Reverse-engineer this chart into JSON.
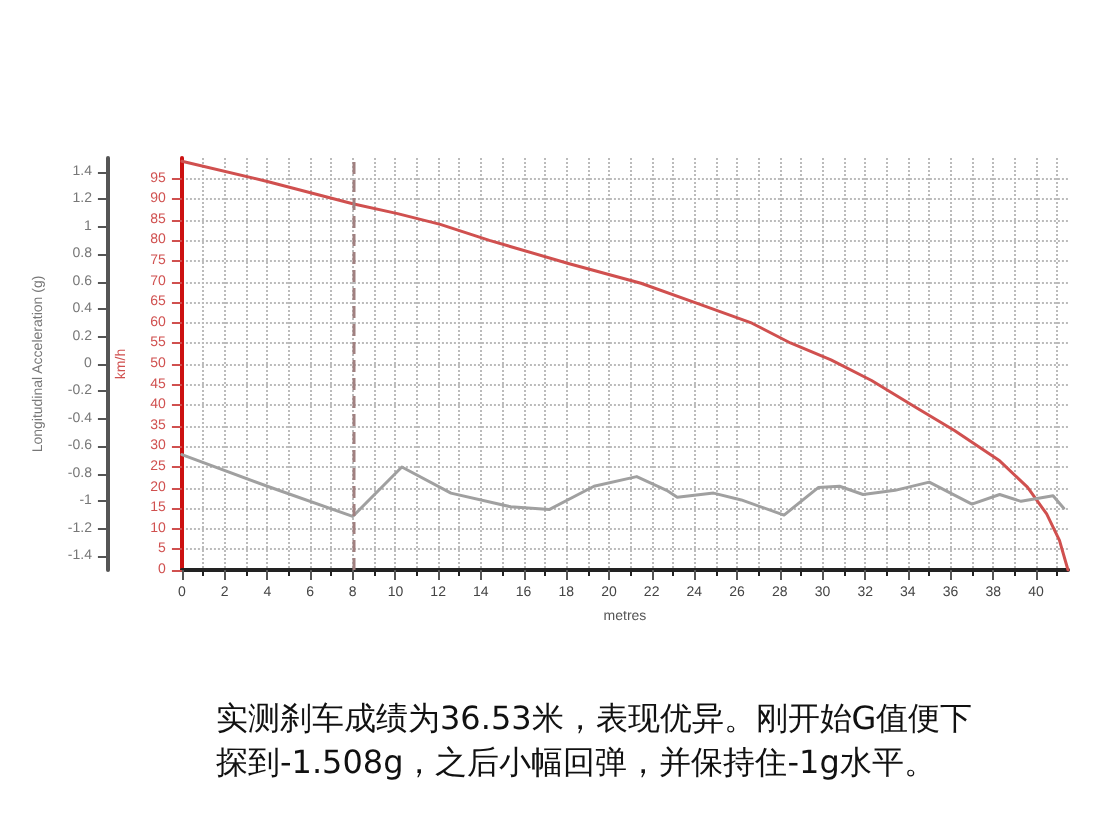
{
  "chart_data": {
    "type": "line",
    "xlabel": "metres",
    "ylabel": "Longitudinal Acceleration (g)",
    "y2label": "km/h",
    "xlim": [
      0,
      41.5
    ],
    "xticks": [
      0,
      2,
      4,
      6,
      8,
      10,
      12,
      14,
      16,
      18,
      20,
      22,
      24,
      26,
      28,
      30,
      32,
      34,
      36,
      38,
      40
    ],
    "ylim": [
      -1.5,
      1.5
    ],
    "yticks": [
      -1.4,
      -1.2,
      -1,
      -0.8,
      -0.6,
      -0.4,
      -0.2,
      0,
      0.2,
      0.4,
      0.6,
      0.8,
      1,
      1.2,
      1.4
    ],
    "y2lim": [
      0,
      100
    ],
    "y2ticks": [
      0,
      5,
      10,
      15,
      20,
      25,
      30,
      35,
      40,
      45,
      50,
      55,
      60,
      65,
      70,
      75,
      80,
      85,
      90,
      95
    ],
    "grid": true,
    "marker": "none",
    "line_style": "solid",
    "series": [
      {
        "color": "#d0504f",
        "axis": "y2",
        "x": [
          0,
          4,
          8,
          10.1,
          12.1,
          14.4,
          18.1,
          21.5,
          24.2,
          26.7,
          28.5,
          30.4,
          32.3,
          34.4,
          36.2,
          38.3,
          39.6,
          40.5,
          41.1,
          41.5
        ],
        "values": [
          99.2,
          94.3,
          88.9,
          86.5,
          83.9,
          80,
          74.4,
          69.6,
          64.6,
          59.9,
          55.1,
          51,
          46,
          39.4,
          33.8,
          26.5,
          20.1,
          13.6,
          7.2,
          0
        ]
      },
      {
        "color": "#a0a0a0",
        "axis": "y",
        "x": [
          0,
          4,
          8,
          10.3,
          12.6,
          15.4,
          17.2,
          19.3,
          21.3,
          22.7,
          23.2,
          24.9,
          26.2,
          28.2,
          29.8,
          30.8,
          31.9,
          33.4,
          35,
          37,
          38.3,
          39.3,
          40.8,
          41.3
        ],
        "values": [
          -0.66,
          -0.89,
          -1.11,
          -0.75,
          -0.94,
          -1.04,
          -1.06,
          -0.89,
          -0.82,
          -0.92,
          -0.97,
          -0.94,
          -0.99,
          -1.1,
          -0.9,
          -0.89,
          -0.95,
          -0.92,
          -0.86,
          -1.02,
          -0.95,
          -1,
          -0.96,
          -1.05
        ]
      }
    ],
    "ref_lines": [
      {
        "axis": "x",
        "value": 8,
        "color": "#a08080",
        "line_style": "dashed"
      }
    ],
    "annotations": [
      "实测刹车成绩为36.53米，表现优异。刚开始G值便下探到-1.508g，之后小幅回弹，并保持住-1g水平。"
    ]
  }
}
